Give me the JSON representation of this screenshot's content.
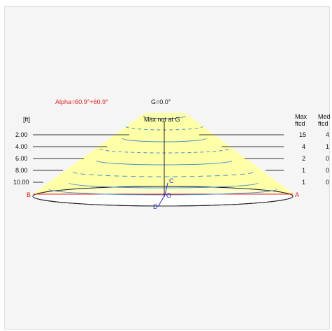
{
  "header": {
    "alpha": "Alpha=60.9°+60.9°",
    "g_angle": "G=0.0°",
    "max_note": "Max not at G"
  },
  "unit_label": "[ft]",
  "columns": {
    "max": [
      "Max",
      "ftcd"
    ],
    "med": [
      "Med",
      "ftcd"
    ]
  },
  "rows": [
    {
      "distance": "2.00",
      "max": "15",
      "med": "4"
    },
    {
      "distance": "4.00",
      "max": "4",
      "med": "1"
    },
    {
      "distance": "6.00",
      "max": "2",
      "med": "0"
    },
    {
      "distance": "8.00",
      "max": "1",
      "med": "0"
    },
    {
      "distance": "10.00",
      "max": "1",
      "med": "0"
    }
  ],
  "points": {
    "a": "A",
    "b": "B",
    "c": "C",
    "d": "D",
    "o": "O"
  },
  "colors": {
    "cone_fill": "#ffffa8",
    "contour": "#4a90c8",
    "accent_red": "#e0201e",
    "accent_blue": "#2a2acb"
  }
}
